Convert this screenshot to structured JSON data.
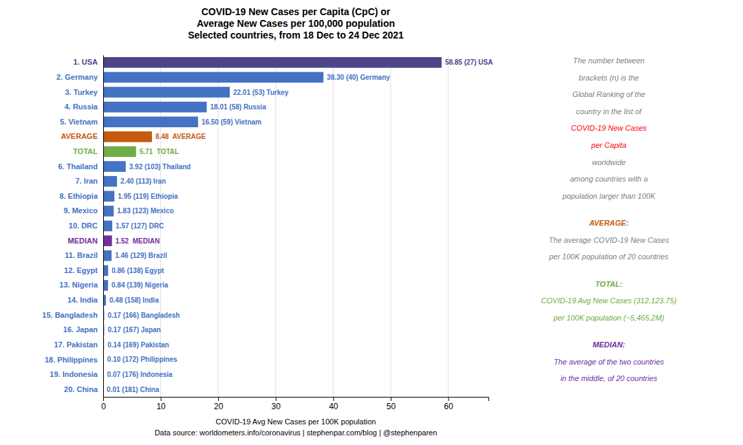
{
  "chart_data": {
    "type": "bar",
    "orientation": "horizontal",
    "title": [
      "COVID-19 New Cases per Capita (CpC) or",
      "Average New Cases per 100,000 population",
      "Selected countries, from 18 Dec to 24 Dec 2021"
    ],
    "xlabel": "COVID-19 Avg New Cases per 100K population",
    "source": "Data source: worldometers.info/coronavirus | stephenpar.com/blog | @stephenparen",
    "categories": [
      "1. USA",
      "2. Germany",
      "3. Turkey",
      "4. Russia",
      "5. Vietnam",
      "AVERAGE",
      "TOTAL",
      "6. Thailand",
      "7. Iran",
      "8. Ethiopia",
      "9. Mexico",
      "10. DRC",
      "MEDIAN",
      "11. Brazil",
      "12. Egypt",
      "13. Nigeria",
      "14. India",
      "15. Bangladesh",
      "16. Japan",
      "17. Pakistan",
      "18. Philippines",
      "19. Indonesia",
      "20. China"
    ],
    "values": [
      58.85,
      38.3,
      22.01,
      18.01,
      16.5,
      8.48,
      5.71,
      3.92,
      2.4,
      1.95,
      1.83,
      1.57,
      1.52,
      1.46,
      0.86,
      0.84,
      0.48,
      0.17,
      0.17,
      0.14,
      0.1,
      0.07,
      0.01
    ],
    "value_labels": [
      "58.85 (27) USA",
      "38.30 (40) Germany",
      "22.01 (53) Turkey",
      "18.01 (58) Russia",
      "16.50 (59) Vietnam",
      "8.48  AVERAGE",
      "5.71  TOTAL",
      "3.92 (103) Thailand",
      "2.40 (113) Iran",
      "1.95 (119) Ethiopia",
      "1.83 (123) Mexico",
      "1.57 (127) DRC",
      "1.52  MEDIAN",
      "1.46 (129) Brazil",
      "0.86 (138) Egypt",
      "0.84 (139) Nigeria",
      "0.48 (158) India",
      "0.17 (166) Bangladesh",
      "0.17 (167) Japan",
      "0.14 (169) Pakistan",
      "0.10 (172) Philippines",
      "0.07 (176) Indonesia",
      "0.01 (181) China"
    ],
    "colors": [
      "#4D4589",
      "#4472C4",
      "#4472C4",
      "#4472C4",
      "#4472C4",
      "#C55A11",
      "#70AD47",
      "#4472C4",
      "#4472C4",
      "#4472C4",
      "#4472C4",
      "#4472C4",
      "#7030A0",
      "#4472C4",
      "#4472C4",
      "#4472C4",
      "#4472C4",
      "#4472C4",
      "#4472C4",
      "#4472C4",
      "#4472C4",
      "#4472C4",
      "#4472C4"
    ],
    "data_labels": true,
    "xlim": [
      0,
      67
    ],
    "xticks": [
      0,
      10,
      20,
      30,
      40,
      50,
      60
    ],
    "grid": true,
    "annotations": [
      {
        "segments": [
          {
            "color": "#7F7F7F",
            "lines": [
              "The number between",
              "brackets (n) is the",
              "Global Ranking of the",
              "country in the list of"
            ]
          },
          {
            "color": "#FF0000",
            "lines": [
              "COVID-19 New Cases",
              "per Capita"
            ]
          },
          {
            "color": "#7F7F7F",
            "lines": [
              "worldwide",
              "among countries with a",
              "population larger than 100K"
            ]
          }
        ]
      },
      {
        "heading": "AVERAGE:",
        "color": "#C55A11",
        "segments": [
          {
            "color": "#7F7F7F",
            "lines": [
              "The average COVID-19 New Cases",
              "per 100K population of 20 countries"
            ]
          }
        ]
      },
      {
        "heading": "TOTAL:",
        "color": "#70AD47",
        "segments": [
          {
            "color": "#70AD47",
            "lines": [
              "COVID-19 Avg New Cases (312,123.75)",
              "per 100K population (~5,465.2M)"
            ]
          }
        ]
      },
      {
        "heading": "MEDIAN:",
        "color": "#7030A0",
        "segments": [
          {
            "color": "#7030A0",
            "lines": [
              "The average of the two countries",
              "in the middle, of 20 countries"
            ]
          }
        ]
      }
    ]
  }
}
